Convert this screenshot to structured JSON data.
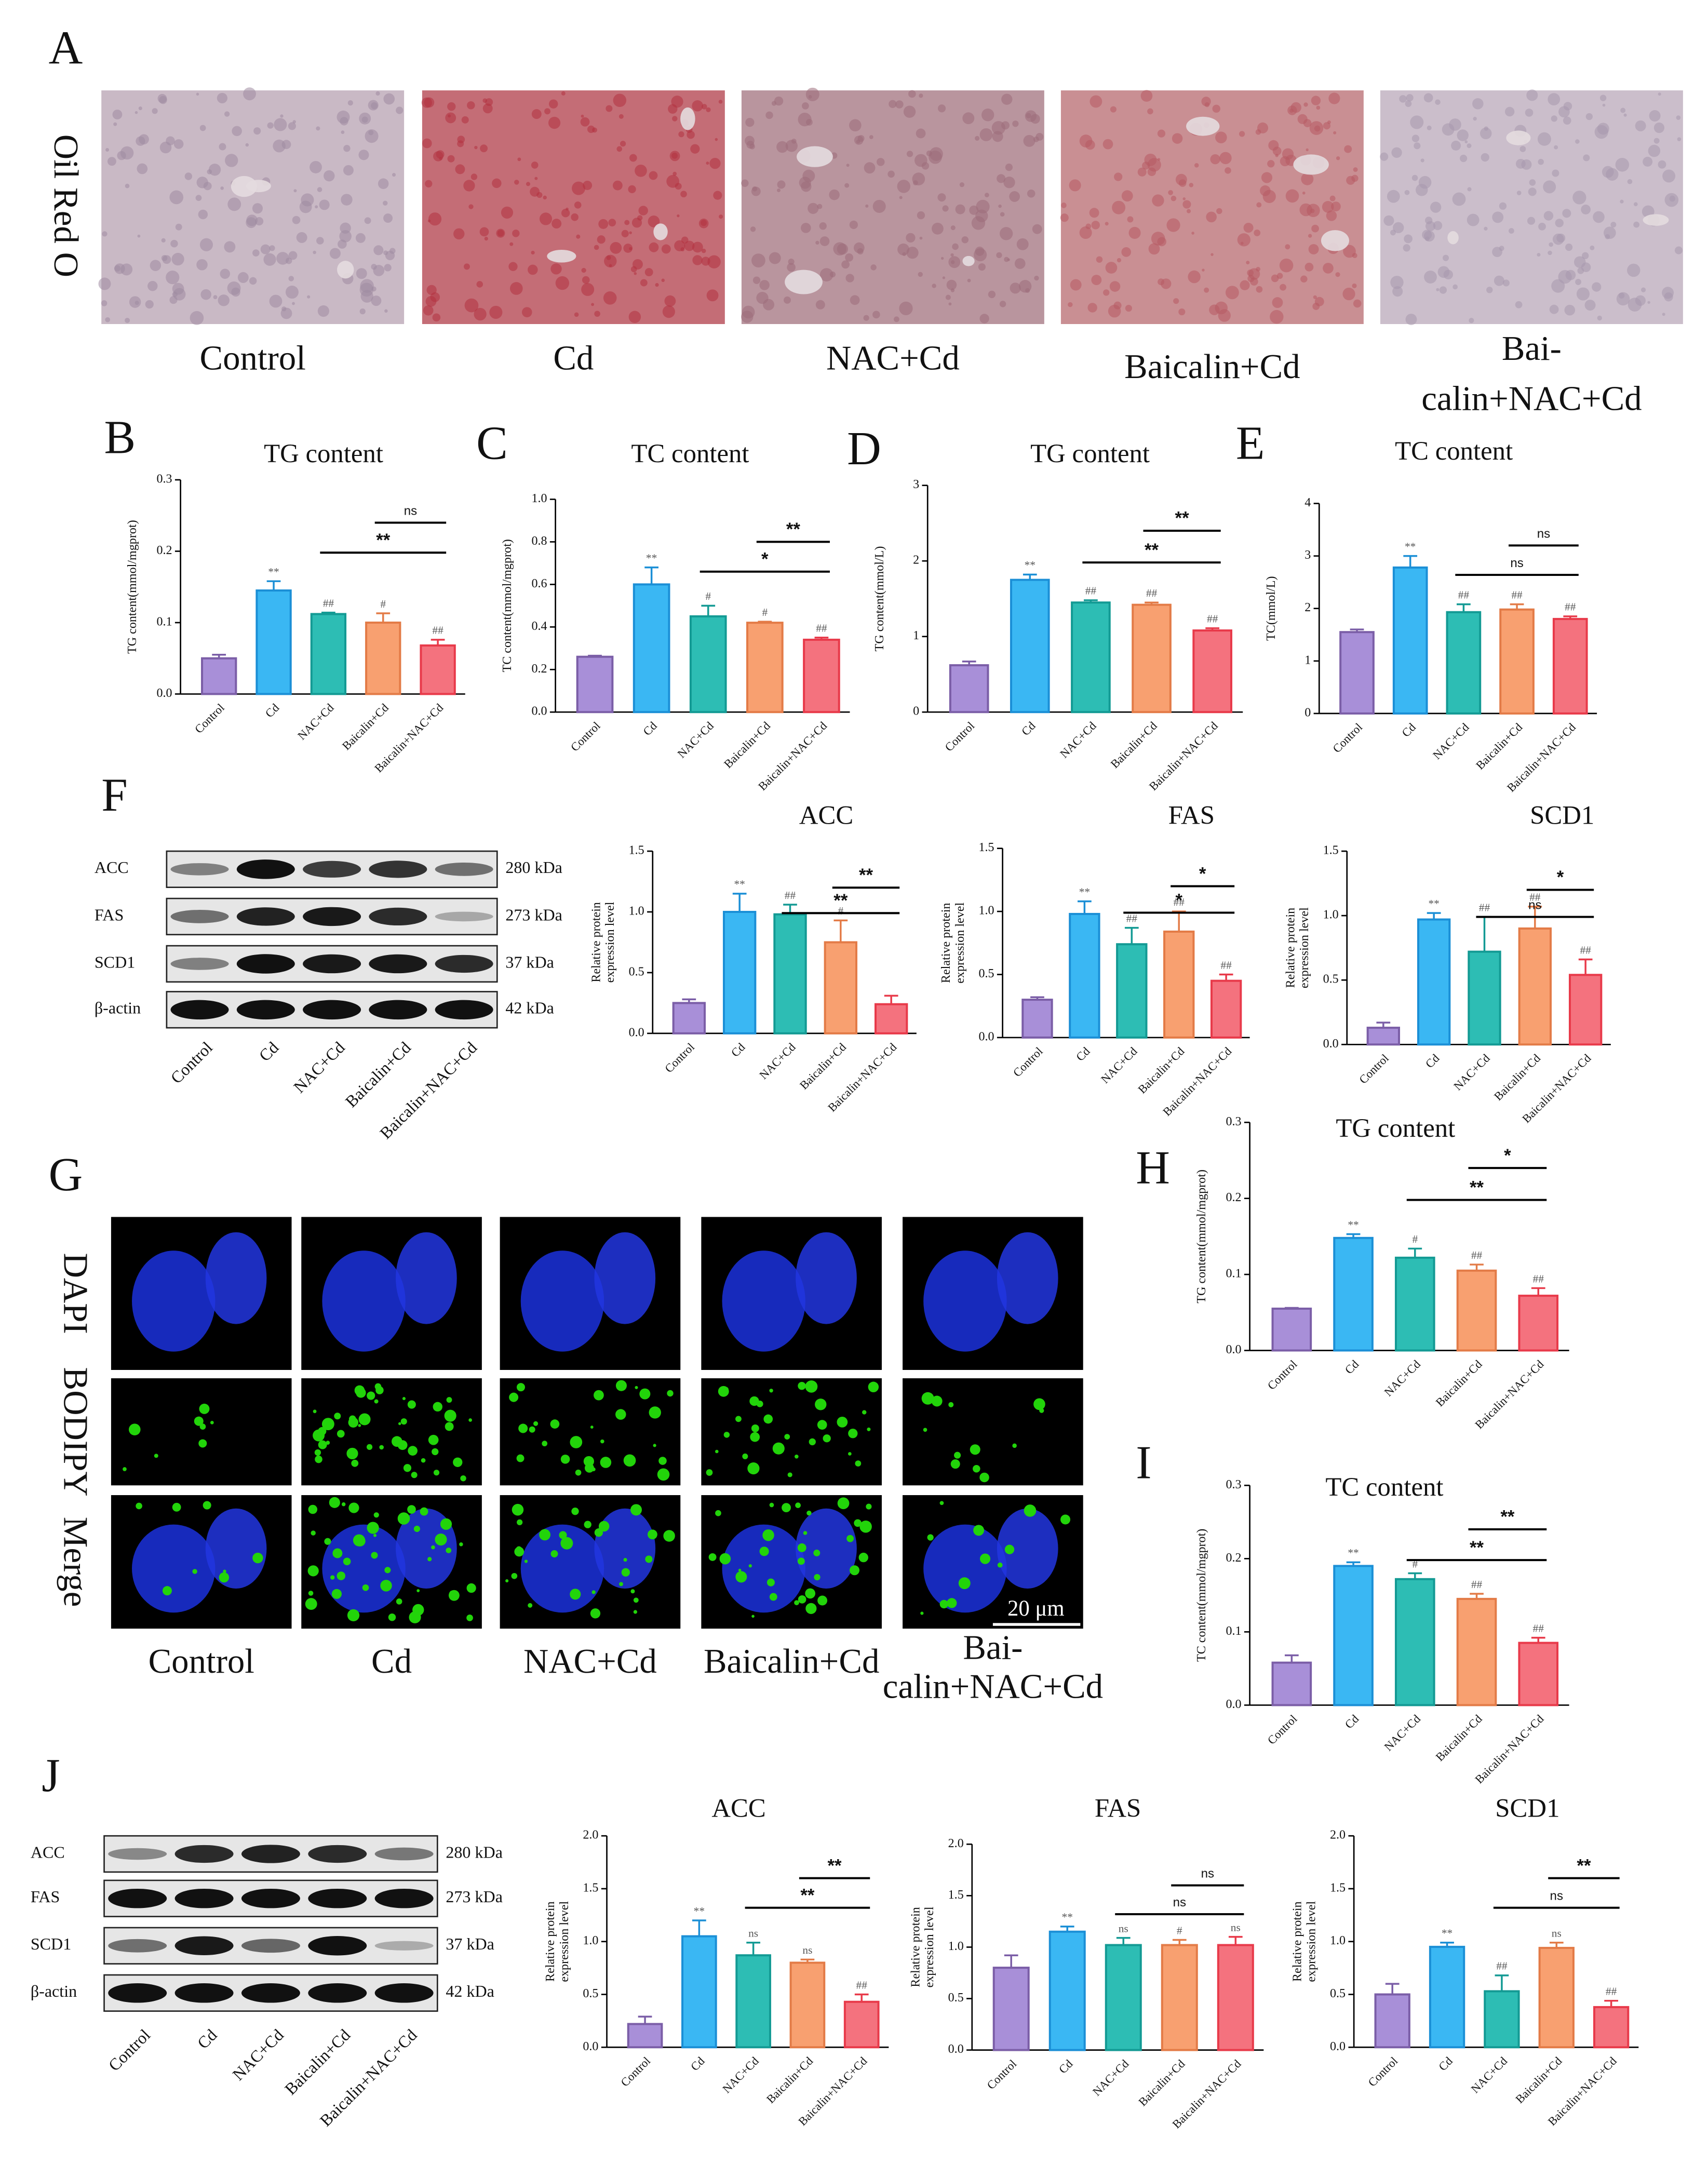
{
  "panel_a": {
    "panel": "A",
    "stain": "Oil Red O",
    "groups": [
      [
        "Control"
      ],
      [
        "Cd"
      ],
      [
        "NAC+Cd"
      ],
      [
        "Baicalin+Cd"
      ],
      [
        "Bai-",
        "calin+NAC+Cd"
      ]
    ]
  },
  "panel_g": {
    "panel": "G",
    "channels": [
      "DAPI",
      "BODIPY",
      "Merge"
    ],
    "groups": [
      [
        "Control"
      ],
      [
        "Cd"
      ],
      [
        "NAC+Cd"
      ],
      [
        "Baicalin+Cd"
      ],
      [
        "Bai-",
        "calin+NAC+Cd"
      ]
    ],
    "scale_bar": "20 μm"
  },
  "blots": [
    {
      "panel": "F",
      "rows": [
        {
          "name": "ACC",
          "size": "280 kDa"
        },
        {
          "name": "FAS",
          "size": "273 kDa"
        },
        {
          "name": "SCD1",
          "size": "37 kDa"
        },
        {
          "name": "β-actin",
          "size": "42 kDa"
        }
      ],
      "lanes": [
        "Control",
        "Cd",
        "NAC+Cd",
        "Baicalin+Cd",
        "Baicalin+NAC+Cd"
      ]
    },
    {
      "panel": "J",
      "rows": [
        {
          "name": "ACC",
          "size": "280 kDa"
        },
        {
          "name": "FAS",
          "size": "273 kDa"
        },
        {
          "name": "SCD1",
          "size": "37 kDa"
        },
        {
          "name": "β-actin",
          "size": "42 kDa"
        }
      ],
      "lanes": [
        "Control",
        "Cd",
        "NAC+Cd",
        "Baicalin+Cd",
        "Baicalin+NAC+Cd"
      ]
    }
  ],
  "chart_data": [
    {
      "type": "bar",
      "panel": "B",
      "title": "TG content",
      "ylabel": [
        "TG content(mmol/mgprot)"
      ],
      "categories": [
        "Control",
        "Cd",
        "NAC+Cd",
        "Baicalin+Cd",
        "Baicalin+NAC+Cd"
      ],
      "values": [
        0.05,
        0.145,
        0.112,
        0.1,
        0.068
      ],
      "errors": [
        0.005,
        0.013,
        0.002,
        0.013,
        0.008
      ],
      "colors": [
        "#a88fd8",
        "#3ab7f3",
        "#2dbdb4",
        "#f8a070",
        "#f4727e"
      ],
      "edge_colors": [
        "#7b5ea7",
        "#1b8fd6",
        "#139a94",
        "#e37b47",
        "#e83a4a"
      ],
      "ylim": [
        0,
        0.3
      ],
      "yticks": [
        {
          "value": 0,
          "label": "0.0"
        },
        0.1,
        0.2,
        0.3
      ],
      "bar_labels": [
        null,
        "**",
        "##",
        "#",
        "##"
      ],
      "comparisons": [
        {
          "between": [
            "Baicalin+Cd",
            "Baicalin+NAC+Cd"
          ],
          "label": "ns"
        },
        {
          "between": [
            "NAC+Cd",
            "Baicalin+NAC+Cd"
          ],
          "label": "**"
        }
      ]
    },
    {
      "type": "bar",
      "panel": "C",
      "title": "TC content",
      "ylabel": [
        "TC content(mmol/mgprot)"
      ],
      "categories": [
        "Control",
        "Cd",
        "NAC+Cd",
        "Baicalin+Cd",
        "Baicalin+NAC+Cd"
      ],
      "values": [
        0.26,
        0.6,
        0.45,
        0.42,
        0.34
      ],
      "errors": [
        0.005,
        0.08,
        0.05,
        0.005,
        0.01
      ],
      "colors": [
        "#a88fd8",
        "#3ab7f3",
        "#2dbdb4",
        "#f8a070",
        "#f4727e"
      ],
      "edge_colors": [
        "#7b5ea7",
        "#1b8fd6",
        "#139a94",
        "#e37b47",
        "#e83a4a"
      ],
      "ylim": [
        0,
        1
      ],
      "yticks": [
        {
          "value": 0,
          "label": "0.0"
        },
        0.2,
        0.4,
        0.6,
        0.8,
        {
          "value": 1,
          "label": "1.0"
        }
      ],
      "bar_labels": [
        null,
        "**",
        "#",
        "#",
        "##"
      ],
      "comparisons": [
        {
          "between": [
            "Baicalin+Cd",
            "Baicalin+NAC+Cd"
          ],
          "label": "**"
        },
        {
          "between": [
            "NAC+Cd",
            "Baicalin+NAC+Cd"
          ],
          "label": "*"
        }
      ]
    },
    {
      "type": "bar",
      "panel": "D",
      "title": "TG content",
      "ylabel": [
        "TG content(mmol/L)"
      ],
      "categories": [
        "Control",
        "Cd",
        "NAC+Cd",
        "Baicalin+Cd",
        "Baicalin+NAC+Cd"
      ],
      "values": [
        0.62,
        1.75,
        1.45,
        1.42,
        1.08
      ],
      "errors": [
        0.05,
        0.07,
        0.03,
        0.03,
        0.03
      ],
      "colors": [
        "#a88fd8",
        "#3ab7f3",
        "#2dbdb4",
        "#f8a070",
        "#f4727e"
      ],
      "edge_colors": [
        "#7b5ea7",
        "#1b8fd6",
        "#139a94",
        "#e37b47",
        "#e83a4a"
      ],
      "ylim": [
        0,
        3
      ],
      "yticks": [
        0,
        1,
        2,
        3
      ],
      "bar_labels": [
        null,
        "**",
        "##",
        "##",
        "##"
      ],
      "comparisons": [
        {
          "between": [
            "Baicalin+Cd",
            "Baicalin+NAC+Cd"
          ],
          "label": "**"
        },
        {
          "between": [
            "NAC+Cd",
            "Baicalin+NAC+Cd"
          ],
          "label": "**"
        }
      ]
    },
    {
      "type": "bar",
      "panel": "E",
      "title": "TC content",
      "ylabel": [
        "TC(mmol/L)"
      ],
      "categories": [
        "Control",
        "Cd",
        "NAC+Cd",
        "Baicalin+Cd",
        "Baicalin+NAC+Cd"
      ],
      "values": [
        1.55,
        2.78,
        1.93,
        1.98,
        1.8
      ],
      "errors": [
        0.05,
        0.22,
        0.15,
        0.1,
        0.05
      ],
      "colors": [
        "#a88fd8",
        "#3ab7f3",
        "#2dbdb4",
        "#f8a070",
        "#f4727e"
      ],
      "edge_colors": [
        "#7b5ea7",
        "#1b8fd6",
        "#139a94",
        "#e37b47",
        "#e83a4a"
      ],
      "ylim": [
        0,
        4
      ],
      "yticks": [
        0,
        1,
        2,
        3,
        4
      ],
      "bar_labels": [
        null,
        "**",
        "##",
        "##",
        "##"
      ],
      "comparisons": [
        {
          "between": [
            "Baicalin+Cd",
            "Baicalin+NAC+Cd"
          ],
          "label": "ns"
        },
        {
          "between": [
            "NAC+Cd",
            "Baicalin+NAC+Cd"
          ],
          "label": "ns"
        }
      ]
    },
    {
      "type": "bar",
      "title": "ACC",
      "ylabel": [
        "Relative protein",
        "expression level"
      ],
      "categories": [
        "Control",
        "Cd",
        "NAC+Cd",
        "Baicalin+Cd",
        "Baicalin+NAC+Cd"
      ],
      "values": [
        0.25,
        1.0,
        0.98,
        0.75,
        0.24
      ],
      "errors": [
        0.03,
        0.15,
        0.08,
        0.18,
        0.07
      ],
      "colors": [
        "#a88fd8",
        "#3ab7f3",
        "#2dbdb4",
        "#f8a070",
        "#f4727e"
      ],
      "edge_colors": [
        "#7b5ea7",
        "#1b8fd6",
        "#139a94",
        "#e37b47",
        "#e83a4a"
      ],
      "ylim": [
        0,
        1.5
      ],
      "yticks": [
        {
          "value": 0,
          "label": "0.0"
        },
        0.5,
        {
          "value": 1,
          "label": "1.0"
        },
        1.5
      ],
      "bar_labels": [
        null,
        "**",
        "##",
        "#",
        null
      ],
      "comparisons": [
        {
          "between": [
            "Baicalin+Cd",
            "Baicalin+NAC+Cd"
          ],
          "label": "**"
        },
        {
          "between": [
            "NAC+Cd",
            "Baicalin+NAC+Cd"
          ],
          "label": "**"
        }
      ]
    },
    {
      "type": "bar",
      "title": "FAS",
      "ylabel": [
        "Relative protein",
        "expression level"
      ],
      "categories": [
        "Control",
        "Cd",
        "NAC+Cd",
        "Baicalin+Cd",
        "Baicalin+NAC+Cd"
      ],
      "values": [
        0.3,
        0.98,
        0.74,
        0.84,
        0.45
      ],
      "errors": [
        0.02,
        0.1,
        0.13,
        0.16,
        0.05
      ],
      "colors": [
        "#a88fd8",
        "#3ab7f3",
        "#2dbdb4",
        "#f8a070",
        "#f4727e"
      ],
      "edge_colors": [
        "#7b5ea7",
        "#1b8fd6",
        "#139a94",
        "#e37b47",
        "#e83a4a"
      ],
      "ylim": [
        0,
        1.5
      ],
      "yticks": [
        {
          "value": 0,
          "label": "0.0"
        },
        0.5,
        {
          "value": 1,
          "label": "1.0"
        },
        1.5
      ],
      "bar_labels": [
        null,
        "**",
        "##",
        "##",
        "##"
      ],
      "comparisons": [
        {
          "between": [
            "Baicalin+Cd",
            "Baicalin+NAC+Cd"
          ],
          "label": "*"
        },
        {
          "between": [
            "NAC+Cd",
            "Baicalin+NAC+Cd"
          ],
          "label": "*"
        }
      ]
    },
    {
      "type": "bar",
      "title": "SCD1",
      "ylabel": [
        "Relative protein",
        "expression level"
      ],
      "categories": [
        "Control",
        "Cd",
        "NAC+Cd",
        "Baicalin+Cd",
        "Baicalin+NAC+Cd"
      ],
      "values": [
        0.13,
        0.97,
        0.72,
        0.9,
        0.54
      ],
      "errors": [
        0.04,
        0.05,
        0.27,
        0.17,
        0.12
      ],
      "colors": [
        "#a88fd8",
        "#3ab7f3",
        "#2dbdb4",
        "#f8a070",
        "#f4727e"
      ],
      "edge_colors": [
        "#7b5ea7",
        "#1b8fd6",
        "#139a94",
        "#e37b47",
        "#e83a4a"
      ],
      "ylim": [
        0,
        1.5
      ],
      "yticks": [
        {
          "value": 0,
          "label": "0.0"
        },
        0.5,
        {
          "value": 1,
          "label": "1.0"
        },
        1.5
      ],
      "bar_labels": [
        null,
        "**",
        "##",
        "##",
        "##"
      ],
      "comparisons": [
        {
          "between": [
            "Baicalin+Cd",
            "Baicalin+NAC+Cd"
          ],
          "label": "*"
        },
        {
          "between": [
            "NAC+Cd",
            "Baicalin+NAC+Cd"
          ],
          "label": "ns"
        }
      ]
    },
    {
      "type": "bar",
      "panel": "H",
      "title": "TG content",
      "ylabel": [
        "TG content(mmol/mgprot)"
      ],
      "categories": [
        "Control",
        "Cd",
        "NAC+Cd",
        "Baicalin+Cd",
        "Baicalin+NAC+Cd"
      ],
      "values": [
        0.055,
        0.148,
        0.122,
        0.105,
        0.072
      ],
      "errors": [
        0.001,
        0.005,
        0.012,
        0.008,
        0.01
      ],
      "colors": [
        "#a88fd8",
        "#3ab7f3",
        "#2dbdb4",
        "#f8a070",
        "#f4727e"
      ],
      "edge_colors": [
        "#7b5ea7",
        "#1b8fd6",
        "#139a94",
        "#e37b47",
        "#e83a4a"
      ],
      "ylim": [
        0,
        0.3
      ],
      "yticks": [
        {
          "value": 0,
          "label": "0.0"
        },
        0.1,
        0.2,
        0.3
      ],
      "bar_labels": [
        null,
        "**",
        "#",
        "##",
        "##"
      ],
      "comparisons": [
        {
          "between": [
            "Baicalin+Cd",
            "Baicalin+NAC+Cd"
          ],
          "label": "*"
        },
        {
          "between": [
            "NAC+Cd",
            "Baicalin+NAC+Cd"
          ],
          "label": "**"
        }
      ]
    },
    {
      "type": "bar",
      "panel": "I",
      "title": "TC content",
      "ylabel": [
        "TC content(mmol/mgprot)"
      ],
      "categories": [
        "Control",
        "Cd",
        "NAC+Cd",
        "Baicalin+Cd",
        "Baicalin+NAC+Cd"
      ],
      "values": [
        0.058,
        0.19,
        0.172,
        0.145,
        0.085
      ],
      "errors": [
        0.01,
        0.005,
        0.008,
        0.007,
        0.007
      ],
      "colors": [
        "#a88fd8",
        "#3ab7f3",
        "#2dbdb4",
        "#f8a070",
        "#f4727e"
      ],
      "edge_colors": [
        "#7b5ea7",
        "#1b8fd6",
        "#139a94",
        "#e37b47",
        "#e83a4a"
      ],
      "ylim": [
        0,
        0.3
      ],
      "yticks": [
        {
          "value": 0,
          "label": "0.0"
        },
        0.1,
        0.2,
        0.3
      ],
      "bar_labels": [
        null,
        "**",
        "#",
        "##",
        "##"
      ],
      "comparisons": [
        {
          "between": [
            "Baicalin+Cd",
            "Baicalin+NAC+Cd"
          ],
          "label": "**"
        },
        {
          "between": [
            "NAC+Cd",
            "Baicalin+NAC+Cd"
          ],
          "label": "**"
        }
      ]
    },
    {
      "type": "bar",
      "title": "ACC",
      "ylabel": [
        "Relative protein",
        "expression level"
      ],
      "categories": [
        "Control",
        "Cd",
        "NAC+Cd",
        "Baicalin+Cd",
        "Baicalin+NAC+Cd"
      ],
      "values": [
        0.22,
        1.05,
        0.87,
        0.8,
        0.43
      ],
      "errors": [
        0.07,
        0.15,
        0.12,
        0.03,
        0.07
      ],
      "colors": [
        "#a88fd8",
        "#3ab7f3",
        "#2dbdb4",
        "#f8a070",
        "#f4727e"
      ],
      "edge_colors": [
        "#7b5ea7",
        "#1b8fd6",
        "#139a94",
        "#e37b47",
        "#e83a4a"
      ],
      "ylim": [
        0,
        2
      ],
      "yticks": [
        {
          "value": 0,
          "label": "0.0"
        },
        0.5,
        {
          "value": 1,
          "label": "1.0"
        },
        1.5,
        {
          "value": 2,
          "label": "2.0"
        }
      ],
      "bar_labels": [
        null,
        "**",
        "ns",
        "ns",
        "##"
      ],
      "comparisons": [
        {
          "between": [
            "Baicalin+Cd",
            "Baicalin+NAC+Cd"
          ],
          "label": "**"
        },
        {
          "between": [
            "NAC+Cd",
            "Baicalin+NAC+Cd"
          ],
          "label": "**"
        }
      ]
    },
    {
      "type": "bar",
      "title": "FAS",
      "ylabel": [
        "Relative protein",
        "expression level"
      ],
      "categories": [
        "Control",
        "Cd",
        "NAC+Cd",
        "Baicalin+Cd",
        "Baicalin+NAC+Cd"
      ],
      "values": [
        0.8,
        1.15,
        1.02,
        1.02,
        1.02
      ],
      "errors": [
        0.12,
        0.05,
        0.07,
        0.05,
        0.08
      ],
      "colors": [
        "#a88fd8",
        "#3ab7f3",
        "#2dbdb4",
        "#f8a070",
        "#f4727e"
      ],
      "edge_colors": [
        "#7b5ea7",
        "#1b8fd6",
        "#139a94",
        "#e37b47",
        "#e83a4a"
      ],
      "ylim": [
        0,
        2
      ],
      "yticks": [
        {
          "value": 0,
          "label": "0.0"
        },
        0.5,
        {
          "value": 1,
          "label": "1.0"
        },
        1.5,
        {
          "value": 2,
          "label": "2.0"
        }
      ],
      "bar_labels": [
        null,
        "**",
        "ns",
        "#",
        "ns"
      ],
      "comparisons": [
        {
          "between": [
            "Baicalin+Cd",
            "Baicalin+NAC+Cd"
          ],
          "label": "ns"
        },
        {
          "between": [
            "NAC+Cd",
            "Baicalin+NAC+Cd"
          ],
          "label": "ns"
        }
      ]
    },
    {
      "type": "bar",
      "title": "SCD1",
      "ylabel": [
        "Relative protein",
        "expression level"
      ],
      "categories": [
        "Control",
        "Cd",
        "NAC+Cd",
        "Baicalin+Cd",
        "Baicalin+NAC+Cd"
      ],
      "values": [
        0.5,
        0.95,
        0.53,
        0.94,
        0.38
      ],
      "errors": [
        0.1,
        0.04,
        0.15,
        0.05,
        0.06
      ],
      "colors": [
        "#a88fd8",
        "#3ab7f3",
        "#2dbdb4",
        "#f8a070",
        "#f4727e"
      ],
      "edge_colors": [
        "#7b5ea7",
        "#1b8fd6",
        "#139a94",
        "#e37b47",
        "#e83a4a"
      ],
      "ylim": [
        0,
        2
      ],
      "yticks": [
        {
          "value": 0,
          "label": "0.0"
        },
        0.5,
        {
          "value": 1,
          "label": "1.0"
        },
        1.5,
        {
          "value": 2,
          "label": "2.0"
        }
      ],
      "bar_labels": [
        null,
        "**",
        "##",
        "ns",
        "##"
      ],
      "comparisons": [
        {
          "between": [
            "Baicalin+Cd",
            "Baicalin+NAC+Cd"
          ],
          "label": "**"
        },
        {
          "between": [
            "NAC+Cd",
            "Baicalin+NAC+Cd"
          ],
          "label": "ns"
        }
      ]
    }
  ]
}
